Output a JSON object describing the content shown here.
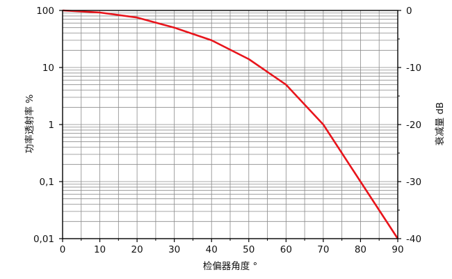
{
  "chart_data": {
    "type": "line",
    "title": "",
    "xlabel": "检偏器角度 °",
    "ylabel_left": "功率透射率 %",
    "ylabel_right": "衰减量 dB",
    "x_scale": "linear",
    "y_left_scale": "log",
    "xlim": [
      0,
      90
    ],
    "ylim_left": [
      0.01,
      100
    ],
    "ylim_right": [
      -40,
      0
    ],
    "x_ticks": [
      0,
      10,
      20,
      30,
      40,
      50,
      60,
      70,
      80,
      90
    ],
    "x_tick_labels": [
      "0",
      "10",
      "20",
      "30",
      "40",
      "50",
      "60",
      "70",
      "80",
      "90"
    ],
    "y_left_ticks": [
      100,
      10,
      1,
      0.1,
      0.01
    ],
    "y_left_tick_labels": [
      "100",
      "10",
      "1",
      "0,1",
      "0,01"
    ],
    "y_right_ticks": [
      0,
      -10,
      -20,
      -30,
      -40
    ],
    "y_right_tick_labels": [
      "0",
      "-10",
      "-20",
      "-30",
      "-40"
    ],
    "grid": true,
    "line_color": "#e8141b",
    "series": [
      {
        "x": [
          0,
          10,
          20,
          30,
          40,
          50,
          60,
          70,
          80,
          90
        ],
        "y": [
          100,
          92,
          75,
          50,
          30,
          14,
          5,
          1,
          0.1,
          0.01
        ]
      }
    ]
  }
}
